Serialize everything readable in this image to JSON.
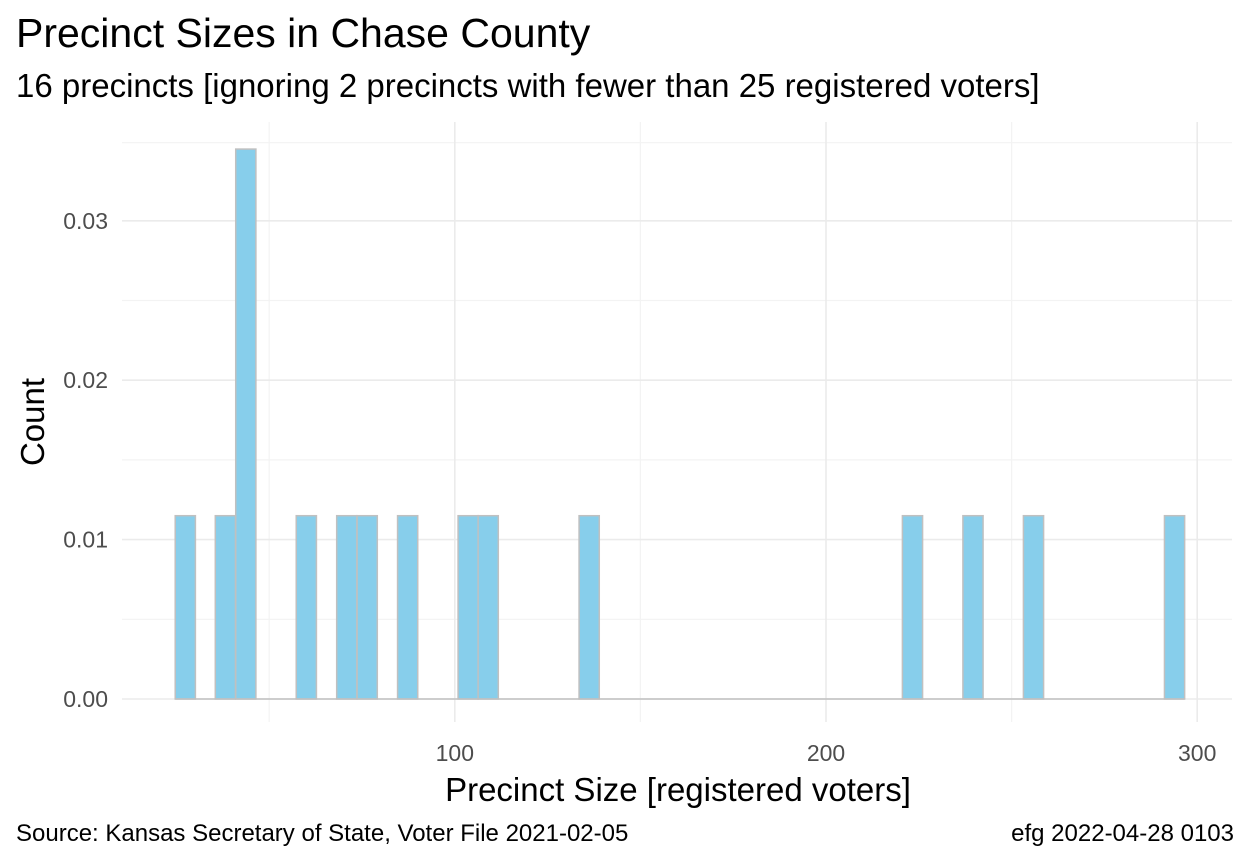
{
  "title": "Precinct Sizes in Chase County",
  "subtitle": "16 precincts [ignoring 2 precincts with fewer than 25 registered voters]",
  "caption_left": "Source:  Kansas Secretary of State, Voter File  2021-02-05",
  "caption_right": "efg 2022-04-28 0103",
  "colors": {
    "bar_fill": "#87ceeb",
    "bar_stroke": "#c0c0c0",
    "grid_major": "#ebebeb",
    "grid_minor": "#f3f3f3"
  },
  "chart_data": {
    "type": "bar",
    "subtype": "histogram",
    "xlabel": "Precinct Size [registered voters]",
    "ylabel": "Count",
    "xlim": [
      15,
      300
    ],
    "ylim": [
      0,
      0.0345
    ],
    "x_ticks": [
      100,
      200,
      300
    ],
    "y_ticks": [
      0.0,
      0.01,
      0.02,
      0.03
    ],
    "y_tick_labels": [
      "0.00",
      "0.01",
      "0.02",
      "0.03"
    ],
    "grid": true,
    "legend": "none",
    "bins": [
      {
        "x": 27.4,
        "value": 0.0115
      },
      {
        "x": 38.2,
        "value": 0.0115
      },
      {
        "x": 43.7,
        "value": 0.0345
      },
      {
        "x": 60.0,
        "value": 0.0115
      },
      {
        "x": 70.9,
        "value": 0.0115
      },
      {
        "x": 76.4,
        "value": 0.0115
      },
      {
        "x": 87.3,
        "value": 0.0115
      },
      {
        "x": 103.6,
        "value": 0.0115
      },
      {
        "x": 109.0,
        "value": 0.0115
      },
      {
        "x": 136.2,
        "value": 0.0115
      },
      {
        "x": 223.3,
        "value": 0.0115
      },
      {
        "x": 239.6,
        "value": 0.0115
      },
      {
        "x": 255.9,
        "value": 0.0115
      },
      {
        "x": 293.9,
        "value": 0.0115
      }
    ],
    "bin_width": 5.44
  }
}
